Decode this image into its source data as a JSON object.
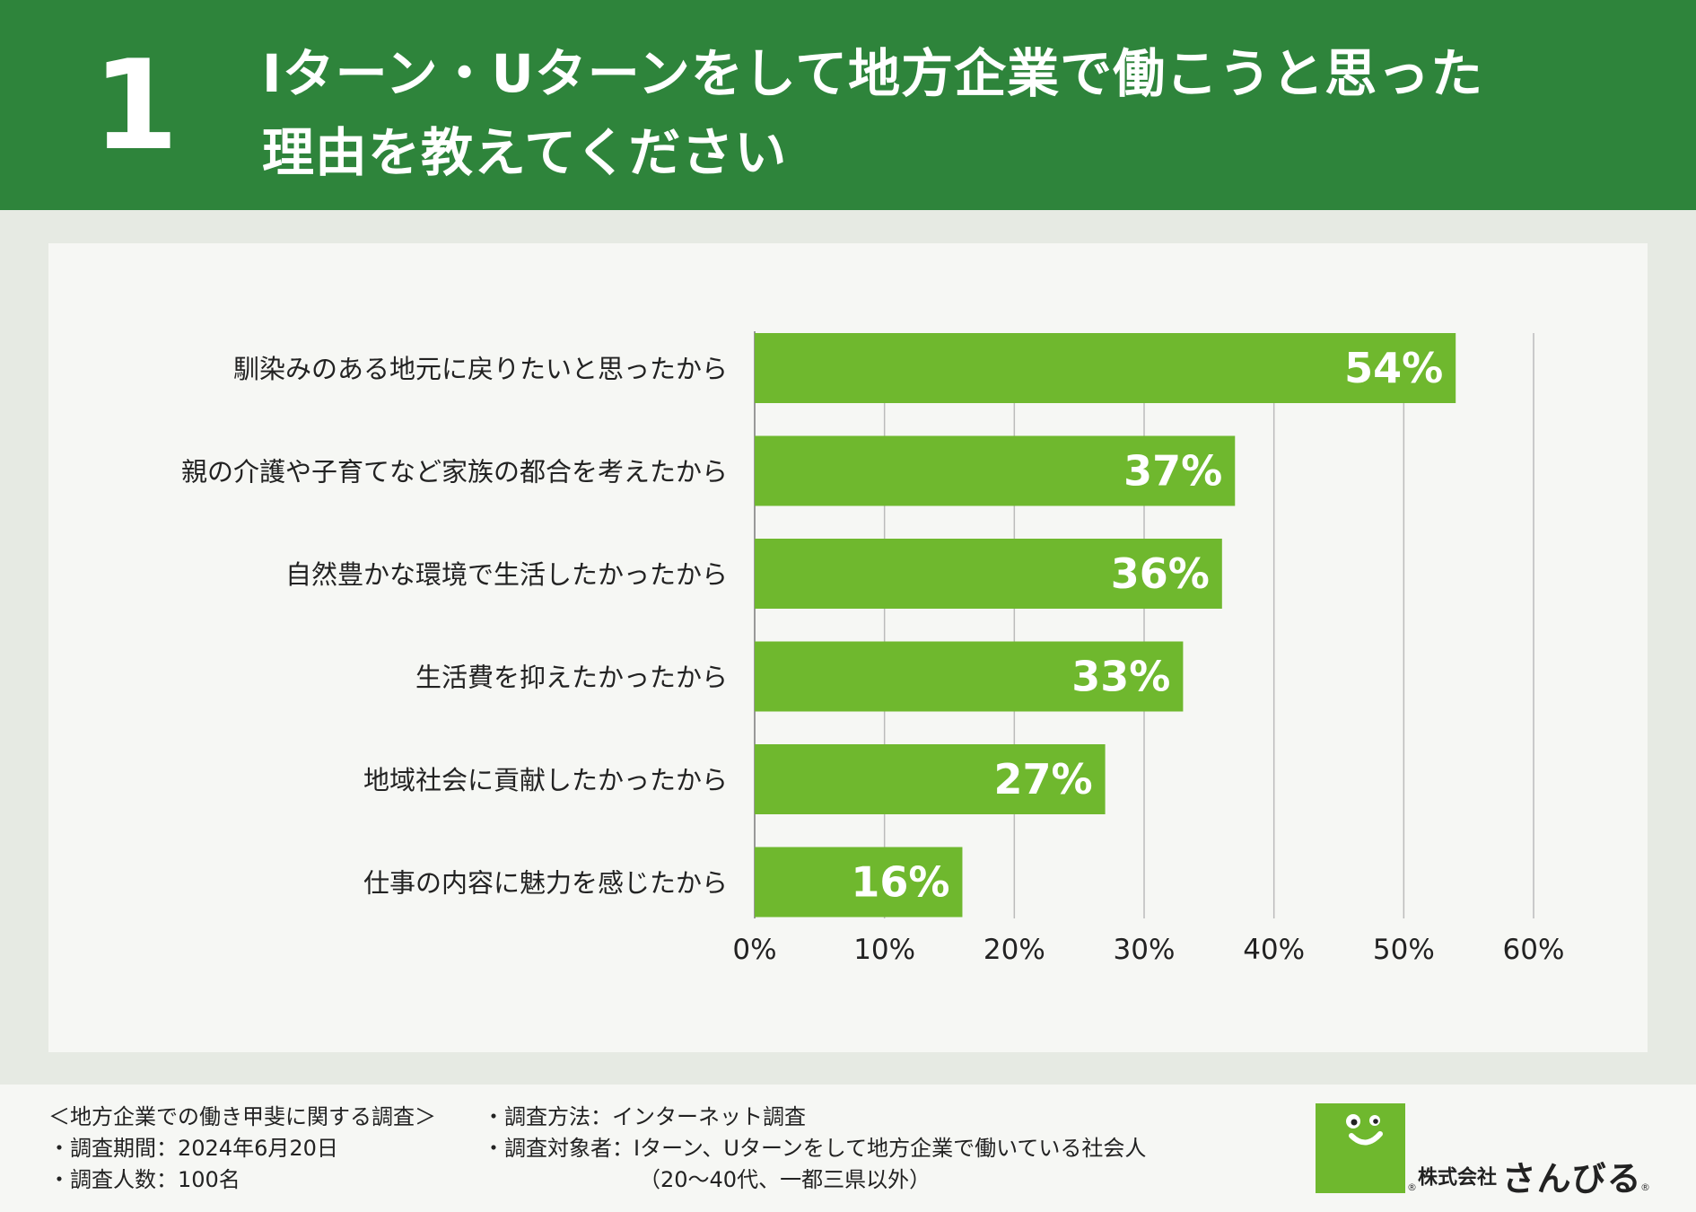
{
  "header": {
    "number": "1",
    "title_line1": "Iターン・Uターンをして地方企業で働こうと思った",
    "title_line2": "理由を教えてください"
  },
  "colors": {
    "header_bg": "#2e843b",
    "bar": "#6fb82e",
    "bar_label": "#ffffff",
    "grid": "#bbbbbb"
  },
  "chart_data": {
    "type": "bar",
    "orientation": "horizontal",
    "categories": [
      "馴染みのある地元に戻りたいと思ったから",
      "親の介護や子育てなど家族の都合を考えたから",
      "自然豊かな環境で生活したかったから",
      "生活費を抑えたかったから",
      "地域社会に貢献したかったから",
      "仕事の内容に魅力を感じたから"
    ],
    "values": [
      54,
      37,
      36,
      33,
      27,
      16
    ],
    "value_labels": [
      "54%",
      "37%",
      "36%",
      "33%",
      "27%",
      "16%"
    ],
    "xlim": [
      0,
      60
    ],
    "xticks": [
      "0%",
      "10%",
      "20%",
      "30%",
      "40%",
      "50%",
      "60%"
    ],
    "grid": true
  },
  "footer": {
    "survey_title": "＜地方企業での働き甲斐に関する調査＞",
    "period": "・調査期間：2024年6月20日",
    "respondents": "・調査人数：100名",
    "method": "・調査方法：インターネット調査",
    "target": "・調査対象者：Iターン、Uターンをして地方企業で働いている社会人",
    "target_note": "（20〜40代、一都三県以外）"
  },
  "logo": {
    "company_prefix": "株式会社",
    "company_name": "さんびる"
  }
}
